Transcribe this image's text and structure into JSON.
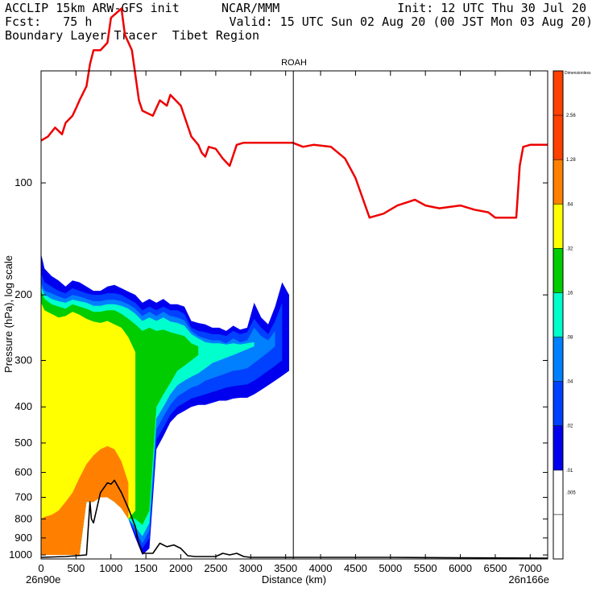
{
  "header": {
    "line1_left": "ACCLIP 15km ARW-GFS init",
    "line1_mid": "NCAR/MMM",
    "line1_right": "Init: 12 UTC Thu 30 Jul 20",
    "line2_left": "Fcst:   75 h",
    "line2_right": "Valid: 15 UTC Sun 02 Aug 20 (00 JST Mon 03 Aug 20)",
    "line3_left": "Boundary Layer Tracer  Tibet Region"
  },
  "chart_data": {
    "type": "heatmap",
    "title": "ROAH",
    "xlabel": "Distance (km)",
    "ylabel": "Pressure (hPa), log scale",
    "x_ticks": [
      0,
      500,
      1000,
      1500,
      2000,
      2500,
      3000,
      3500,
      4000,
      4500,
      5000,
      5500,
      6000,
      6500,
      7000
    ],
    "x_tick_labels": [
      "0",
      "500",
      "1000",
      "1500",
      "2000",
      "2500",
      "3000",
      "3500",
      "4000",
      "4500",
      "5000",
      "5500",
      "6000",
      "6500",
      "7000"
    ],
    "y_ticks": [
      100,
      200,
      300,
      400,
      500,
      600,
      700,
      800,
      900,
      1000
    ],
    "y_tick_labels": [
      "100",
      "200",
      "300",
      "400",
      "500",
      "600",
      "700",
      "800",
      "900",
      "1000"
    ],
    "y_scale": "log",
    "xlim": [
      0,
      7250
    ],
    "ylim": [
      1025,
      50
    ],
    "x_start_label": "26n90e",
    "x_end_label": "26n166e",
    "vertical_line_x": 3610,
    "colorbar": {
      "title": "Dimensionless",
      "levels": [
        "2.56",
        "1.28",
        ".64",
        ".32",
        ".16",
        ".08",
        ".04",
        ".02",
        ".01",
        ".005"
      ],
      "colors": [
        "#ff4000",
        "#ff8000",
        "#ffff00",
        "#00cc00",
        "#00ffcc",
        "#0080ff",
        "#0040ff",
        "#0000ee",
        "#ffffff",
        "#ffffff"
      ]
    },
    "series": [
      {
        "color": "#ee0000",
        "points": [
          [
            0,
            77
          ],
          [
            100,
            75
          ],
          [
            200,
            71
          ],
          [
            300,
            74
          ],
          [
            350,
            69
          ],
          [
            450,
            66
          ],
          [
            500,
            63
          ],
          [
            550,
            60
          ],
          [
            650,
            55
          ],
          [
            700,
            48
          ],
          [
            750,
            44
          ],
          [
            850,
            44
          ],
          [
            950,
            42
          ],
          [
            1000,
            36
          ],
          [
            1150,
            34
          ],
          [
            1200,
            40
          ],
          [
            1300,
            44
          ],
          [
            1400,
            60
          ],
          [
            1450,
            64
          ],
          [
            1600,
            66
          ],
          [
            1700,
            60
          ],
          [
            1800,
            62
          ],
          [
            1850,
            58
          ],
          [
            2000,
            62
          ],
          [
            2150,
            75
          ],
          [
            2250,
            79
          ],
          [
            2300,
            83
          ],
          [
            2350,
            85
          ],
          [
            2400,
            80
          ],
          [
            2500,
            81
          ],
          [
            2600,
            86
          ],
          [
            2650,
            88
          ],
          [
            2700,
            90
          ],
          [
            2800,
            79
          ],
          [
            2900,
            78
          ],
          [
            3000,
            78
          ],
          [
            3200,
            78
          ],
          [
            3450,
            78
          ],
          [
            3600,
            78
          ],
          [
            3750,
            80
          ],
          [
            3900,
            79
          ],
          [
            4150,
            80
          ],
          [
            4350,
            86
          ],
          [
            4500,
            97
          ],
          [
            4700,
            124
          ],
          [
            4900,
            121
          ],
          [
            5100,
            115
          ],
          [
            5350,
            111
          ],
          [
            5500,
            115
          ],
          [
            5700,
            117
          ],
          [
            6000,
            115
          ],
          [
            6200,
            118
          ],
          [
            6400,
            120
          ],
          [
            6500,
            124
          ],
          [
            6800,
            124
          ],
          [
            6850,
            90
          ],
          [
            6900,
            80
          ],
          [
            7000,
            79
          ],
          [
            7250,
            79
          ]
        ]
      },
      {
        "color": "#000000",
        "points": [
          [
            0,
            1015
          ],
          [
            350,
            1010
          ],
          [
            650,
            1000
          ],
          [
            700,
            720
          ],
          [
            720,
            800
          ],
          [
            750,
            820
          ],
          [
            850,
            680
          ],
          [
            950,
            640
          ],
          [
            1000,
            645
          ],
          [
            1050,
            630
          ],
          [
            1150,
            680
          ],
          [
            1250,
            750
          ],
          [
            1350,
            840
          ],
          [
            1400,
            940
          ],
          [
            1450,
            990
          ],
          [
            1600,
            990
          ],
          [
            1700,
            930
          ],
          [
            1800,
            950
          ],
          [
            1900,
            940
          ],
          [
            2000,
            960
          ],
          [
            2100,
            1005
          ],
          [
            2200,
            1010
          ],
          [
            2500,
            1010
          ],
          [
            2600,
            990
          ],
          [
            2700,
            1000
          ],
          [
            2800,
            990
          ],
          [
            2900,
            1010
          ],
          [
            3000,
            1015
          ],
          [
            4000,
            1015
          ],
          [
            5000,
            1015
          ],
          [
            6000,
            1018
          ],
          [
            7250,
            1020
          ]
        ]
      }
    ],
    "tracer_shading": [
      {
        "level": ".01",
        "color": "#0000ee",
        "x": [
          0,
          50,
          150,
          250,
          350,
          450,
          550,
          650,
          750,
          850,
          950,
          1050,
          1150,
          1250,
          1350,
          1450,
          1550,
          1650,
          1750,
          1850,
          1950,
          2050,
          2150,
          2250,
          2350,
          2450,
          2550,
          2650,
          2750,
          2850,
          2950,
          3050,
          3150,
          3250,
          3350,
          3450,
          3550
        ],
        "p_top": [
          155,
          170,
          178,
          183,
          190,
          183,
          185,
          190,
          195,
          195,
          190,
          188,
          192,
          196,
          200,
          210,
          205,
          210,
          205,
          212,
          212,
          215,
          235,
          238,
          240,
          245,
          245,
          250,
          242,
          248,
          245,
          210,
          230,
          240,
          215,
          185,
          200
        ],
        "p_bottom": [
          1000,
          1000,
          1000,
          1000,
          1000,
          1000,
          1000,
          720,
          720,
          700,
          700,
          720,
          750,
          800,
          900,
          1000,
          960,
          520,
          480,
          440,
          420,
          410,
          400,
          395,
          395,
          390,
          385,
          385,
          380,
          378,
          378,
          370,
          360,
          350,
          340,
          330,
          320
        ]
      },
      {
        "level": ".02",
        "color": "#0040ff",
        "x": [
          0,
          50,
          150,
          250,
          350,
          450,
          550,
          650,
          750,
          850,
          950,
          1050,
          1150,
          1250,
          1350,
          1450,
          1550,
          1650,
          1750,
          1850,
          1950,
          2050,
          2150,
          2250,
          2350,
          2450,
          2550,
          2650,
          2750,
          2850,
          2950,
          3050,
          3150,
          3250,
          3350,
          3450
        ],
        "p_top": [
          175,
          185,
          190,
          195,
          198,
          192,
          195,
          198,
          200,
          200,
          198,
          198,
          200,
          205,
          210,
          220,
          215,
          220,
          215,
          220,
          220,
          225,
          245,
          250,
          252,
          255,
          255,
          258,
          250,
          255,
          252,
          232,
          245,
          255,
          235,
          210
        ],
        "p_bottom": [
          1000,
          1000,
          1000,
          1000,
          1000,
          1000,
          1000,
          720,
          720,
          700,
          700,
          720,
          750,
          800,
          880,
          960,
          900,
          490,
          455,
          420,
          400,
          390,
          380,
          375,
          370,
          365,
          360,
          355,
          352,
          350,
          348,
          340,
          330,
          320,
          310,
          300
        ]
      },
      {
        "level": ".04",
        "color": "#0080ff",
        "x": [
          0,
          50,
          150,
          250,
          350,
          450,
          550,
          650,
          750,
          850,
          950,
          1050,
          1150,
          1250,
          1350,
          1450,
          1550,
          1650,
          1750,
          1850,
          1950,
          2050,
          2150,
          2250,
          2350,
          2450,
          2550,
          2650,
          2750,
          2850,
          2950,
          3050,
          3150,
          3250,
          3350
        ],
        "p_top": [
          185,
          195,
          198,
          202,
          205,
          200,
          202,
          205,
          208,
          208,
          206,
          206,
          208,
          212,
          218,
          228,
          222,
          228,
          222,
          228,
          230,
          234,
          250,
          258,
          262,
          265,
          265,
          270,
          262,
          268,
          265,
          245,
          258,
          265,
          250
        ],
        "p_bottom": [
          1000,
          1000,
          1000,
          1000,
          1000,
          1000,
          1000,
          720,
          720,
          700,
          700,
          720,
          750,
          800,
          860,
          930,
          860,
          460,
          425,
          395,
          375,
          365,
          355,
          350,
          340,
          335,
          330,
          325,
          320,
          318,
          315,
          305,
          295,
          285,
          275
        ]
      },
      {
        "level": ".08",
        "color": "#00ffcc",
        "x": [
          0,
          50,
          150,
          250,
          350,
          450,
          550,
          650,
          750,
          850,
          950,
          1050,
          1150,
          1250,
          1350,
          1450,
          1550,
          1650,
          1750,
          1850,
          1950,
          2050,
          2150,
          2250,
          2350,
          2450,
          2550,
          2650,
          2750,
          2850,
          2950,
          3050
        ],
        "p_top": [
          190,
          200,
          205,
          208,
          210,
          206,
          208,
          210,
          214,
          214,
          212,
          212,
          214,
          218,
          225,
          235,
          230,
          235,
          230,
          236,
          238,
          242,
          255,
          262,
          268,
          270,
          270,
          272,
          270,
          272,
          270,
          268
        ],
        "p_bottom": [
          1000,
          1000,
          1000,
          1000,
          1000,
          1000,
          1000,
          720,
          720,
          700,
          700,
          720,
          750,
          800,
          840,
          890,
          820,
          430,
          400,
          370,
          350,
          340,
          332,
          325,
          315,
          305,
          300,
          295,
          290,
          285,
          280,
          275
        ]
      },
      {
        "level": ".16",
        "color": "#00cc00",
        "x": [
          0,
          50,
          150,
          250,
          350,
          450,
          550,
          650,
          750,
          850,
          950,
          1050,
          1150,
          1250,
          1350,
          1450,
          1550,
          1650,
          1750,
          1850,
          1950,
          2050,
          2150,
          2250
        ],
        "p_top": [
          195,
          205,
          212,
          215,
          218,
          212,
          215,
          218,
          222,
          222,
          220,
          220,
          225,
          232,
          240,
          250,
          245,
          250,
          248,
          252,
          255,
          258,
          270,
          275
        ],
        "p_bottom": [
          1000,
          1000,
          1000,
          1000,
          1000,
          1000,
          1000,
          720,
          720,
          700,
          700,
          720,
          750,
          800,
          800,
          830,
          760,
          400,
          370,
          345,
          320,
          310,
          300,
          290
        ]
      },
      {
        "level": ".32",
        "color": "#ffff00",
        "x": [
          0,
          50,
          150,
          250,
          350,
          450,
          550,
          650,
          750,
          850,
          950,
          1050,
          1150,
          1250,
          1350
        ],
        "p_top": [
          210,
          220,
          225,
          230,
          228,
          222,
          226,
          232,
          236,
          238,
          235,
          240,
          245,
          260,
          285
        ],
        "p_bottom": [
          1000,
          1000,
          1000,
          1000,
          1000,
          1000,
          1000,
          720,
          720,
          700,
          700,
          720,
          750,
          800,
          760
        ]
      },
      {
        "level": ".64",
        "color": "#ff8000",
        "x": [
          0,
          50,
          150,
          250,
          350,
          450,
          550,
          650,
          750,
          850,
          950,
          1050,
          1150,
          1250
        ],
        "p_top": [
          800,
          790,
          780,
          760,
          720,
          680,
          620,
          570,
          540,
          520,
          510,
          520,
          560,
          640
        ],
        "p_bottom": [
          1000,
          1000,
          1000,
          1000,
          1000,
          1000,
          1000,
          720,
          720,
          700,
          700,
          720,
          750,
          800
        ]
      }
    ]
  }
}
